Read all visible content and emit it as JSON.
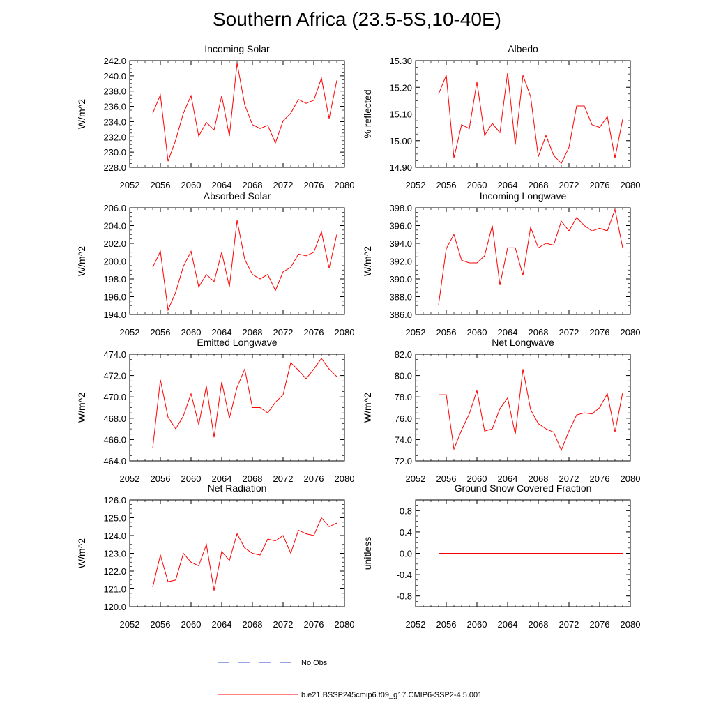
{
  "page": {
    "title": "Southern Africa (23.5-5S,10-40E)"
  },
  "legend": [
    {
      "label": "No Obs",
      "color": "#3344cc",
      "dashed": true
    },
    {
      "label": "b.e21.BSSP245cmip6.f09_g17.CMIP6-SSP2-4.5.001",
      "color": "#ff0000",
      "dashed": false
    }
  ],
  "chart_data": [
    {
      "type": "line",
      "title": "Incoming Solar",
      "ylabel": "W/m^2",
      "xlim": [
        2052,
        2080
      ],
      "xticks": [
        "2052",
        "2056",
        "2060",
        "2064",
        "2068",
        "2072",
        "2076",
        "2080"
      ],
      "ylim": [
        228,
        242
      ],
      "yticks": [
        "228.0",
        "230.0",
        "232.0",
        "234.0",
        "236.0",
        "238.0",
        "240.0",
        "242.0"
      ],
      "grid": false,
      "series": [
        {
          "color": "#ff0000",
          "x": [
            2055,
            2056,
            2057,
            2058,
            2059,
            2060,
            2061,
            2062,
            2063,
            2064,
            2065,
            2066,
            2067,
            2068,
            2069,
            2070,
            2071,
            2072,
            2073,
            2074,
            2075,
            2076,
            2077,
            2078,
            2079
          ],
          "values": [
            235.1,
            237.5,
            228.8,
            231.6,
            235.1,
            237.4,
            232.1,
            233.9,
            232.9,
            237.4,
            232.1,
            241.7,
            236.2,
            233.6,
            233.1,
            233.5,
            231.2,
            234.1,
            235.1,
            236.9,
            236.4,
            236.8,
            239.7,
            234.4,
            239.4
          ]
        }
      ]
    },
    {
      "type": "line",
      "title": "Albedo",
      "ylabel": "% reflected",
      "xlim": [
        2052,
        2080
      ],
      "xticks": [
        "2052",
        "2056",
        "2060",
        "2064",
        "2068",
        "2072",
        "2076",
        "2080"
      ],
      "ylim": [
        14.9,
        15.3
      ],
      "yticks": [
        "14.90",
        "15.00",
        "15.10",
        "15.20",
        "15.30"
      ],
      "grid": false,
      "series": [
        {
          "color": "#ff0000",
          "x": [
            2055,
            2056,
            2057,
            2058,
            2059,
            2060,
            2061,
            2062,
            2063,
            2064,
            2065,
            2066,
            2067,
            2068,
            2069,
            2070,
            2071,
            2072,
            2073,
            2074,
            2075,
            2076,
            2077,
            2078,
            2079
          ],
          "values": [
            15.175,
            15.245,
            14.935,
            15.06,
            15.045,
            15.22,
            15.02,
            15.065,
            15.03,
            15.255,
            14.985,
            15.245,
            15.165,
            14.94,
            15.02,
            14.945,
            14.915,
            14.975,
            15.13,
            15.13,
            15.06,
            15.05,
            15.09,
            14.935,
            15.08
          ]
        }
      ]
    },
    {
      "type": "line",
      "title": "Absorbed Solar",
      "ylabel": "W/m^2",
      "xlim": [
        2052,
        2080
      ],
      "xticks": [
        "2052",
        "2056",
        "2060",
        "2064",
        "2068",
        "2072",
        "2076",
        "2080"
      ],
      "ylim": [
        194,
        206
      ],
      "yticks": [
        "194.0",
        "196.0",
        "198.0",
        "200.0",
        "202.0",
        "204.0",
        "206.0"
      ],
      "grid": false,
      "series": [
        {
          "color": "#ff0000",
          "x": [
            2055,
            2056,
            2057,
            2058,
            2059,
            2060,
            2061,
            2062,
            2063,
            2064,
            2065,
            2066,
            2067,
            2068,
            2069,
            2070,
            2071,
            2072,
            2073,
            2074,
            2075,
            2076,
            2077,
            2078,
            2079
          ],
          "values": [
            199.3,
            201.1,
            194.5,
            196.5,
            199.4,
            201.1,
            197.1,
            198.5,
            197.7,
            201.0,
            197.1,
            204.6,
            200.2,
            198.5,
            198.0,
            198.5,
            196.7,
            198.8,
            199.3,
            200.8,
            200.6,
            201.0,
            203.3,
            199.2,
            203.0
          ]
        }
      ]
    },
    {
      "type": "line",
      "title": "Incoming Longwave",
      "ylabel": "W/m^2",
      "xlim": [
        2052,
        2080
      ],
      "xticks": [
        "2052",
        "2056",
        "2060",
        "2064",
        "2068",
        "2072",
        "2076",
        "2080"
      ],
      "ylim": [
        386,
        398
      ],
      "yticks": [
        "386.0",
        "388.0",
        "390.0",
        "392.0",
        "394.0",
        "396.0",
        "398.0"
      ],
      "grid": false,
      "series": [
        {
          "color": "#ff0000",
          "x": [
            2055,
            2056,
            2057,
            2058,
            2059,
            2060,
            2061,
            2062,
            2063,
            2064,
            2065,
            2066,
            2067,
            2068,
            2069,
            2070,
            2071,
            2072,
            2073,
            2074,
            2075,
            2076,
            2077,
            2078,
            2079
          ],
          "values": [
            387.1,
            393.4,
            395.0,
            392.1,
            391.8,
            391.8,
            392.6,
            396.0,
            389.3,
            393.5,
            393.5,
            390.4,
            395.8,
            393.5,
            394.0,
            393.8,
            396.5,
            395.4,
            396.9,
            396.0,
            395.4,
            395.7,
            395.4,
            397.8,
            393.5
          ]
        }
      ]
    },
    {
      "type": "line",
      "title": "Emitted Longwave",
      "ylabel": "W/m^2",
      "xlim": [
        2052,
        2080
      ],
      "xticks": [
        "2052",
        "2056",
        "2060",
        "2064",
        "2068",
        "2072",
        "2076",
        "2080"
      ],
      "ylim": [
        464,
        474
      ],
      "yticks": [
        "464.0",
        "466.0",
        "468.0",
        "470.0",
        "472.0",
        "474.0"
      ],
      "grid": false,
      "series": [
        {
          "color": "#ff0000",
          "x": [
            2055,
            2056,
            2057,
            2058,
            2059,
            2060,
            2061,
            2062,
            2063,
            2064,
            2065,
            2066,
            2067,
            2068,
            2069,
            2070,
            2071,
            2072,
            2073,
            2074,
            2075,
            2076,
            2077,
            2078,
            2079
          ],
          "values": [
            465.2,
            471.6,
            468.1,
            467.0,
            468.2,
            470.3,
            467.4,
            471.0,
            466.2,
            471.4,
            468.0,
            470.9,
            472.6,
            469.0,
            469.0,
            468.5,
            469.5,
            470.2,
            473.2,
            472.5,
            471.7,
            472.6,
            473.6,
            472.6,
            471.9
          ]
        }
      ]
    },
    {
      "type": "line",
      "title": "Net Longwave",
      "ylabel": "W/m^2",
      "xlim": [
        2052,
        2080
      ],
      "xticks": [
        "2052",
        "2056",
        "2060",
        "2064",
        "2068",
        "2072",
        "2076",
        "2080"
      ],
      "ylim": [
        72,
        82
      ],
      "yticks": [
        "72.0",
        "74.0",
        "76.0",
        "78.0",
        "80.0",
        "82.0"
      ],
      "grid": false,
      "series": [
        {
          "color": "#ff0000",
          "x": [
            2055,
            2056,
            2057,
            2058,
            2059,
            2060,
            2061,
            2062,
            2063,
            2064,
            2065,
            2066,
            2067,
            2068,
            2069,
            2070,
            2071,
            2072,
            2073,
            2074,
            2075,
            2076,
            2077,
            2078,
            2079
          ],
          "values": [
            78.2,
            78.2,
            73.1,
            74.9,
            76.4,
            78.6,
            74.8,
            75.0,
            76.9,
            77.9,
            74.5,
            80.6,
            76.8,
            75.5,
            75.0,
            74.7,
            73.0,
            74.8,
            76.3,
            76.5,
            76.4,
            77.0,
            78.3,
            74.7,
            78.4
          ]
        }
      ]
    },
    {
      "type": "line",
      "title": "Net Radiation",
      "ylabel": "W/m^2",
      "xlim": [
        2052,
        2080
      ],
      "xticks": [
        "2052",
        "2056",
        "2060",
        "2064",
        "2068",
        "2072",
        "2076",
        "2080"
      ],
      "ylim": [
        120,
        126
      ],
      "yticks": [
        "120.0",
        "121.0",
        "122.0",
        "123.0",
        "124.0",
        "125.0",
        "126.0"
      ],
      "grid": false,
      "series": [
        {
          "color": "#ff0000",
          "x": [
            2055,
            2056,
            2057,
            2058,
            2059,
            2060,
            2061,
            2062,
            2063,
            2064,
            2065,
            2066,
            2067,
            2068,
            2069,
            2070,
            2071,
            2072,
            2073,
            2074,
            2075,
            2076,
            2077,
            2078,
            2079
          ],
          "values": [
            121.1,
            122.9,
            121.4,
            121.5,
            123.0,
            122.5,
            122.3,
            123.5,
            120.9,
            123.1,
            122.6,
            124.1,
            123.3,
            123.0,
            122.9,
            123.8,
            123.7,
            124.0,
            123.0,
            124.3,
            124.1,
            124.0,
            125.0,
            124.5,
            124.7
          ]
        }
      ]
    },
    {
      "type": "line",
      "title": "Ground Snow Covered Fraction",
      "ylabel": "unitless",
      "xlim": [
        2052,
        2080
      ],
      "xticks": [
        "2052",
        "2056",
        "2060",
        "2064",
        "2068",
        "2072",
        "2076",
        "2080"
      ],
      "ylim": [
        -1.0,
        1.0
      ],
      "yticks": [
        "-0.8",
        "-0.4",
        "0.0",
        "0.4",
        "0.8"
      ],
      "grid": false,
      "series": [
        {
          "color": "#ff0000",
          "x": [
            2055,
            2056,
            2057,
            2058,
            2059,
            2060,
            2061,
            2062,
            2063,
            2064,
            2065,
            2066,
            2067,
            2068,
            2069,
            2070,
            2071,
            2072,
            2073,
            2074,
            2075,
            2076,
            2077,
            2078,
            2079
          ],
          "values": [
            0,
            0,
            0,
            0,
            0,
            0,
            0,
            0,
            0,
            0,
            0,
            0,
            0,
            0,
            0,
            0,
            0,
            0,
            0,
            0,
            0,
            0,
            0,
            0,
            0
          ]
        }
      ]
    }
  ]
}
